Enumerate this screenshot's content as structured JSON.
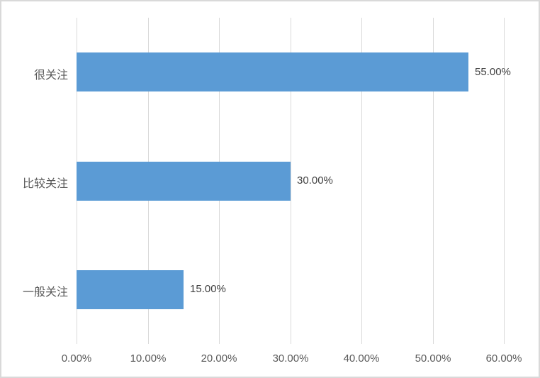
{
  "chart_data": {
    "type": "bar",
    "orientation": "horizontal",
    "categories": [
      "很关注",
      "比较关注",
      "一般关注"
    ],
    "values": [
      55,
      30,
      15
    ],
    "data_labels": [
      "55.00%",
      "30.00%",
      "15.00%"
    ],
    "x_ticks": [
      "0.00%",
      "10.00%",
      "20.00%",
      "30.00%",
      "40.00%",
      "50.00%",
      "60.00%"
    ],
    "xlim": [
      0,
      60
    ],
    "grid": "vertical-only",
    "legend": "none",
    "colors": {
      "bar": "#5B9BD5",
      "gridline": "#D9D9D9",
      "frame_border": "#D9D9D9",
      "category_text": "#595959",
      "value_text": "#404040",
      "tick_text": "#595959",
      "background": "#FFFFFF"
    }
  }
}
